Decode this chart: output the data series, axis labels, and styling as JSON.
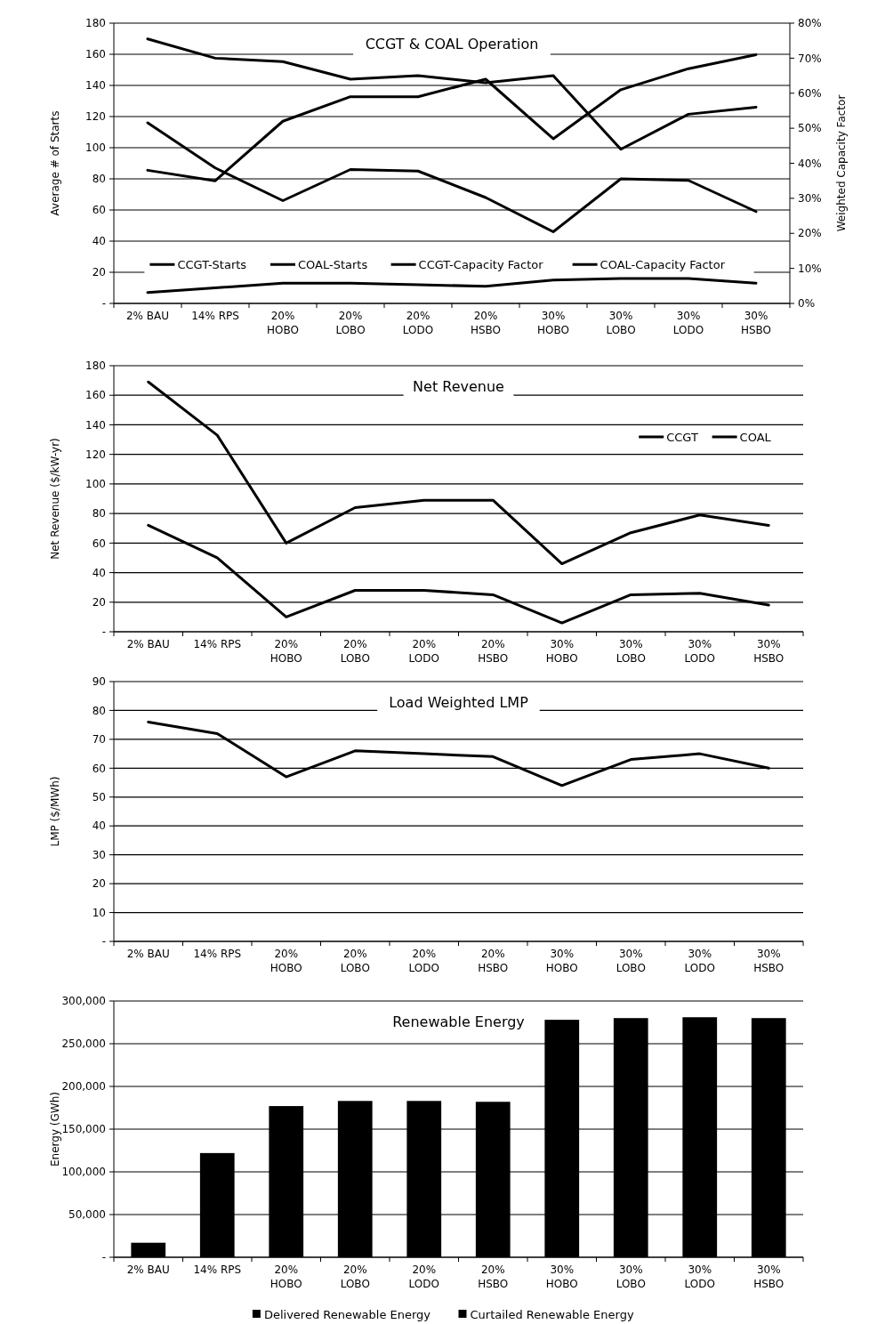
{
  "chart_data": [
    {
      "type": "line",
      "title": "CCGT & COAL Operation",
      "ylabel": "Average # of Starts",
      "y2label": "Weighted Capacity Factor",
      "categories": [
        "2% BAU",
        "14% RPS",
        "20%\nHOBO",
        "20%\nLOBO",
        "20%\nLODO",
        "20%\nHSBO",
        "30%\nHOBO",
        "30%\nLOBO",
        "30%\nLODO",
        "30%\nHSBO"
      ],
      "series": [
        {
          "name": "CCGT-Starts",
          "color": "#000000",
          "values": [
            116,
            87,
            66,
            86,
            85,
            68,
            46,
            80,
            79,
            59
          ]
        },
        {
          "name": "COAL-Starts",
          "color": "#000000",
          "values": [
            7,
            10,
            13,
            13,
            12,
            11,
            15,
            16,
            16,
            13
          ]
        },
        {
          "name": "CCGT-Capacity Factor",
          "color": "#000000",
          "axis": "y2",
          "values": [
            38,
            35,
            52,
            59,
            59,
            64,
            47,
            61,
            67,
            71
          ]
        },
        {
          "name": "COAL-Capacity Factor",
          "color": "#000000",
          "axis": "y2",
          "values": [
            75.5,
            70,
            69,
            64,
            65,
            63,
            65,
            44,
            54,
            56
          ]
        }
      ],
      "ylim": [
        0,
        180
      ],
      "yticks": [
        {
          "value": 0,
          "label": "-"
        },
        20,
        40,
        60,
        80,
        100,
        120,
        140,
        160,
        180
      ],
      "y2lim": [
        0,
        80
      ],
      "y2ticks": [
        {
          "value": 0,
          "label": "0%"
        },
        {
          "value": 10,
          "label": "10%"
        },
        {
          "value": 20,
          "label": "20%"
        },
        {
          "value": 30,
          "label": "30%"
        },
        {
          "value": 40,
          "label": "40%"
        },
        {
          "value": 50,
          "label": "50%"
        },
        {
          "value": 60,
          "label": "60%"
        },
        {
          "value": 70,
          "label": "70%"
        },
        {
          "value": 80,
          "label": "80%"
        }
      ],
      "grid": "y",
      "legend": "bottom",
      "marker": "none",
      "line_style": "solid"
    },
    {
      "type": "line",
      "title": "Net Revenue",
      "ylabel": "Net Revenue ($/kW-yr)",
      "categories": [
        "2% BAU",
        "14% RPS",
        "20%\nHOBO",
        "20%\nLOBO",
        "20%\nLODO",
        "20%\nHSBO",
        "30%\nHOBO",
        "30%\nLOBO",
        "30%\nLODO",
        "30%\nHSBO"
      ],
      "series": [
        {
          "name": "CCGT",
          "color": "#000000",
          "values": [
            169,
            133,
            60,
            84,
            89,
            89,
            46,
            67,
            79,
            72
          ]
        },
        {
          "name": "COAL",
          "color": "#000000",
          "values": [
            72,
            50,
            10,
            28,
            28,
            25,
            6,
            25,
            26,
            18
          ]
        }
      ],
      "ylim": [
        0,
        180
      ],
      "yticks": [
        {
          "value": 0,
          "label": "-"
        },
        20,
        40,
        60,
        80,
        100,
        120,
        140,
        160,
        180
      ],
      "grid": "y",
      "legend": "top right",
      "marker": "none",
      "line_style": "solid"
    },
    {
      "type": "line",
      "title": "Load Weighted LMP",
      "ylabel": "LMP ($/MWh)",
      "categories": [
        "2% BAU",
        "14% RPS",
        "20%\nHOBO",
        "20%\nLOBO",
        "20%\nLODO",
        "20%\nHSBO",
        "30%\nHOBO",
        "30%\nLOBO",
        "30%\nLODO",
        "30%\nHSBO"
      ],
      "series": [
        {
          "color": "#000000",
          "values": [
            76,
            72,
            57,
            66,
            65,
            64,
            54,
            63,
            65,
            60
          ]
        }
      ],
      "ylim": [
        0,
        90
      ],
      "yticks": [
        {
          "value": 0,
          "label": "-"
        },
        10,
        20,
        30,
        40,
        50,
        60,
        70,
        80,
        90
      ],
      "grid": "y",
      "marker": "none",
      "line_style": "solid"
    },
    {
      "type": "bar",
      "title": "Renewable Energy",
      "ylabel": "Energy (GWh)",
      "categories": [
        "2% BAU",
        "14% RPS",
        "20%\nHOBO",
        "20%\nLOBO",
        "20%\nLODO",
        "20%\nHSBO",
        "30%\nHOBO",
        "30%\nLOBO",
        "30%\nLODO",
        "30%\nHSBO"
      ],
      "series": [
        {
          "name": "Delivered Renewable Energy",
          "color": "#000000",
          "values": [
            17000,
            122000,
            177000,
            183000,
            183000,
            182000,
            278000,
            280000,
            281000,
            280000
          ]
        },
        {
          "name": "Curtailed Renewable Energy",
          "color": "#000000",
          "values": [
            0,
            0,
            0,
            0,
            0,
            0,
            0,
            0,
            0,
            0
          ]
        }
      ],
      "stacked": true,
      "ylim": [
        0,
        300000
      ],
      "yticks": [
        {
          "value": 0,
          "label": "-"
        },
        {
          "value": 50000,
          "label": "50,000"
        },
        {
          "value": 100000,
          "label": "100,000"
        },
        {
          "value": 150000,
          "label": "150,000"
        },
        {
          "value": 200000,
          "label": "200,000"
        },
        {
          "value": 250000,
          "label": "250,000"
        },
        {
          "value": 300000,
          "label": "300,000"
        }
      ],
      "grid": "y",
      "legend": "bottom"
    }
  ]
}
